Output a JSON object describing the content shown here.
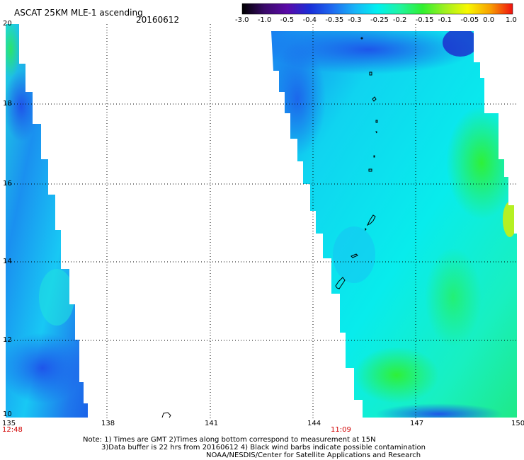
{
  "title": "ASCAT 25KM MLE-1 ascending",
  "date": "20160612",
  "colorbar": {
    "labels": [
      "-3.0",
      "-1.0",
      "-0.5",
      "-0.4",
      "-0.35",
      "-0.3",
      "-0.25",
      "-0.2",
      "-0.15",
      "-0.1",
      "-0.05",
      "0.0",
      "1.0"
    ],
    "colors": [
      "#000000",
      "#3a0a6a",
      "#5a0aa8",
      "#1a2ed8",
      "#1e6af0",
      "#18b4f8",
      "#00f0f0",
      "#20f4a0",
      "#30f030",
      "#a0f020",
      "#f8f800",
      "#f8a000",
      "#f01010"
    ]
  },
  "axes": {
    "x_ticks": [
      "135",
      "138",
      "141",
      "144",
      "147",
      "150"
    ],
    "y_ticks": [
      "20",
      "18",
      "16",
      "14",
      "12",
      "10"
    ]
  },
  "swath_times": [
    "12:48",
    "11:09"
  ],
  "notes": [
    "Note: 1) Times are GMT 2)Times along bottom correspond to measurement at 15N",
    "3)Data buffer is 22 hrs from 20160612 4) Black wind barbs indicate possible contamination",
    "NOAA/NESDIS/Center for Satellite Applications and Research"
  ]
}
